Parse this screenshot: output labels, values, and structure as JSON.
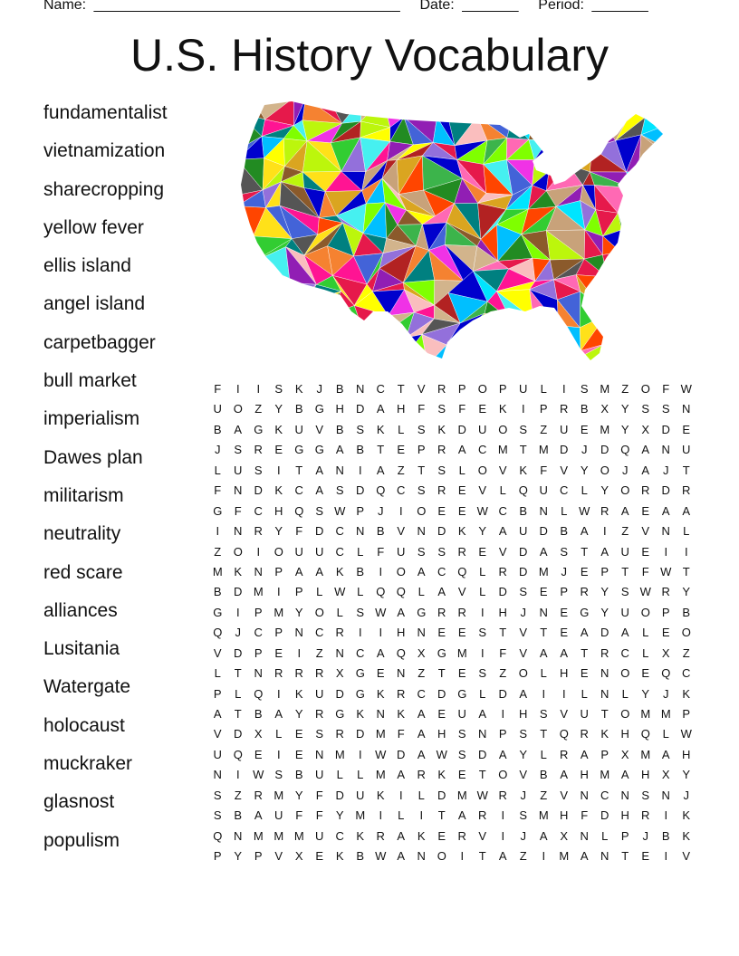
{
  "header": {
    "name_label": "Name:",
    "name_blank": "______________________________________",
    "date_label": "Date:",
    "date_blank": "_______",
    "period_label": "Period:",
    "period_blank": "_______"
  },
  "title": "U.S. History Vocabulary",
  "words": [
    "fundamentalist",
    "vietnamization",
    "sharecropping",
    "yellow fever",
    "ellis island",
    "angel island",
    "carpetbagger",
    "bull market",
    "imperialism",
    "Dawes plan",
    "militarism",
    "neutrality",
    "red scare",
    "alliances",
    "Lusitania",
    "Watergate",
    "holocaust",
    "muckraker",
    "glasnost",
    "populism"
  ],
  "grid": [
    "FIISKJBNCTVRPOPULISMZOFW",
    "UOZYBGHDAHFSFEKIPRBXYSSN",
    "BAGKUVBSKLSKDUOSZUEMYXDE",
    "JSREGGABTEPRACMTMDJDQANU",
    "LUSITANIAZTSLOVKFVYOJAJT",
    "FNDKCASDQCSREVLQUCLYORDR",
    "GFCHQSWPJIOEEWCBNLWRAEAA",
    "INRYFDCNBVNDKYAUDBAIZVNL",
    "ZOIOUUCLFUSSREVDASTAUEII",
    "MKNPAAKBIOACQLRDMJEPTFWT",
    "BDMIPLWLQQLAVLDSEPRYSWRY",
    "GIPMYOLSWAGRRIHJNEGYUOPB",
    "QJCPNCRIIHNEESTVTEADALEO",
    "VDPEIZNCAQXGMIFVAATRCLXZ",
    "LTNRRRXGENZTESZOLHENOEQC",
    "PLQIKUDGKRCDGLDAIILNLYJK",
    "ATBAYRGKNKAEUAIHSVUTOMMP",
    "VDXLESRDMFAHSNPSTQRKHQLW",
    "UQEIENMIWDAWSDAYLRAPXMAH",
    "NIWSBULLMARKETOVBAHMAHXY",
    "SZRMYFDUKILDMWRJZVNCNSNJ",
    "SBAUFFYMILITARISMHFDHRIK",
    "QNMMMUCKRAKERVIJAXNLPJBK",
    "PYPVXEKBWANOITAZIMANTEIV"
  ],
  "map": {
    "icon": "us-map-low-poly",
    "palette": [
      "#e6194b",
      "#3cb44b",
      "#ffe119",
      "#4363d8",
      "#f58231",
      "#911eb4",
      "#46f0f0",
      "#f032e6",
      "#bcf60c",
      "#fabebe",
      "#008080",
      "#8b5a2b",
      "#c8a27a",
      "#00e5ff",
      "#ff1493",
      "#228b22",
      "#ffff00",
      "#0000cd",
      "#ff4500",
      "#7fff00",
      "#9370db",
      "#555555",
      "#d2b48c",
      "#ff69b4",
      "#00bfff",
      "#32cd32",
      "#b22222",
      "#daa520"
    ]
  }
}
